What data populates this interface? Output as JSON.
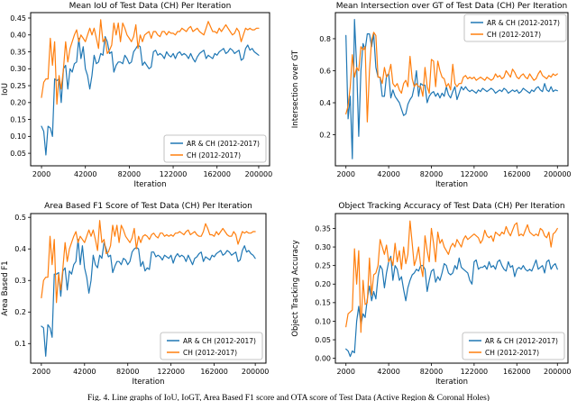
{
  "caption": {
    "text": "Fig. 4. Line graphs of IoU, IoGT, Area Based F1 score and OTA score of Test Data (Active Region & Coronal Holes)"
  },
  "colors": {
    "series_blue": "#1f77b4",
    "series_orange": "#ff7f0e",
    "axes_edge": "#000000",
    "legend_border": "#b3b3b3",
    "text": "#000000"
  },
  "x_axis": {
    "label": "Iteration",
    "start": 2000,
    "step": 2000,
    "count": 100,
    "xlim": [
      -7900,
      209900
    ],
    "ticks": [
      "2000",
      "42000",
      "82000",
      "122000",
      "162000",
      "200000"
    ]
  },
  "chart_data": [
    {
      "type": "line",
      "title": "Mean IoU of Test Data (CH) Per Iteration",
      "xlabel": "Iteration",
      "ylabel": "IoU",
      "ylim": [
        0.013,
        0.466
      ],
      "yticks": [
        "0.05",
        "0.10",
        "0.15",
        "0.20",
        "0.25",
        "0.30",
        "0.35",
        "0.40",
        "0.45"
      ],
      "legend_position": "lower right",
      "series": [
        {
          "name": "AR & CH (2012-2017)",
          "color": "#1f77b4",
          "values": [
            0.13,
            0.115,
            0.045,
            0.13,
            0.125,
            0.1,
            0.27,
            0.265,
            0.27,
            0.2,
            0.3,
            0.31,
            0.24,
            0.3,
            0.29,
            0.315,
            0.32,
            0.39,
            0.33,
            0.365,
            0.3,
            0.28,
            0.24,
            0.28,
            0.34,
            0.315,
            0.32,
            0.345,
            0.34,
            0.395,
            0.38,
            0.345,
            0.35,
            0.29,
            0.31,
            0.32,
            0.32,
            0.315,
            0.34,
            0.33,
            0.315,
            0.32,
            0.35,
            0.36,
            0.37,
            0.365,
            0.31,
            0.32,
            0.31,
            0.3,
            0.305,
            0.35,
            0.355,
            0.34,
            0.345,
            0.34,
            0.33,
            0.35,
            0.34,
            0.335,
            0.345,
            0.33,
            0.345,
            0.35,
            0.34,
            0.345,
            0.34,
            0.33,
            0.345,
            0.33,
            0.32,
            0.335,
            0.345,
            0.35,
            0.355,
            0.33,
            0.34,
            0.335,
            0.33,
            0.345,
            0.34,
            0.35,
            0.355,
            0.36,
            0.345,
            0.35,
            0.36,
            0.355,
            0.345,
            0.35,
            0.355,
            0.325,
            0.33,
            0.36,
            0.37,
            0.355,
            0.36,
            0.35,
            0.345,
            0.34
          ]
        },
        {
          "name": "CH (2012-2017)",
          "color": "#ff7f0e",
          "values": [
            0.215,
            0.26,
            0.27,
            0.27,
            0.39,
            0.31,
            0.38,
            0.195,
            0.28,
            0.24,
            0.3,
            0.38,
            0.32,
            0.36,
            0.38,
            0.4,
            0.415,
            0.38,
            0.4,
            0.39,
            0.38,
            0.4,
            0.42,
            0.4,
            0.42,
            0.39,
            0.36,
            0.445,
            0.38,
            0.39,
            0.345,
            0.355,
            0.37,
            0.435,
            0.4,
            0.435,
            0.38,
            0.435,
            0.42,
            0.4,
            0.39,
            0.38,
            0.395,
            0.43,
            0.36,
            0.4,
            0.38,
            0.4,
            0.405,
            0.41,
            0.39,
            0.41,
            0.41,
            0.4,
            0.395,
            0.41,
            0.41,
            0.4,
            0.41,
            0.405,
            0.405,
            0.4,
            0.41,
            0.41,
            0.42,
            0.415,
            0.41,
            0.42,
            0.425,
            0.41,
            0.415,
            0.42,
            0.41,
            0.405,
            0.4,
            0.42,
            0.44,
            0.425,
            0.41,
            0.41,
            0.405,
            0.42,
            0.41,
            0.42,
            0.43,
            0.42,
            0.41,
            0.4,
            0.405,
            0.42,
            0.41,
            0.38,
            0.4,
            0.42,
            0.415,
            0.42,
            0.415,
            0.415,
            0.42,
            0.42
          ]
        }
      ]
    },
    {
      "type": "line",
      "title": "Mean Intersection over GT of Test Data (CH) Per Iteration",
      "xlabel": "Iteration",
      "ylabel": "Intersection over GT",
      "ylim": [
        0.006,
        0.963
      ],
      "yticks": [
        "0.2",
        "0.4",
        "0.6",
        "0.8"
      ],
      "legend_position": "upper right",
      "series": [
        {
          "name": "AR & CH (2012-2017)",
          "color": "#1f77b4",
          "values": [
            0.82,
            0.3,
            0.44,
            0.05,
            0.92,
            0.63,
            0.19,
            0.6,
            0.77,
            0.73,
            0.83,
            0.83,
            0.75,
            0.83,
            0.62,
            0.56,
            0.56,
            0.44,
            0.44,
            0.57,
            0.58,
            0.43,
            0.48,
            0.44,
            0.42,
            0.4,
            0.36,
            0.32,
            0.33,
            0.39,
            0.42,
            0.44,
            0.5,
            0.6,
            0.44,
            0.52,
            0.51,
            0.51,
            0.4,
            0.44,
            0.46,
            0.47,
            0.44,
            0.46,
            0.43,
            0.46,
            0.44,
            0.5,
            0.45,
            0.43,
            0.47,
            0.5,
            0.42,
            0.46,
            0.5,
            0.48,
            0.5,
            0.48,
            0.47,
            0.48,
            0.47,
            0.46,
            0.48,
            0.47,
            0.49,
            0.48,
            0.47,
            0.48,
            0.49,
            0.48,
            0.46,
            0.47,
            0.48,
            0.47,
            0.49,
            0.48,
            0.46,
            0.47,
            0.48,
            0.47,
            0.48,
            0.46,
            0.47,
            0.49,
            0.48,
            0.47,
            0.46,
            0.48,
            0.47,
            0.49,
            0.5,
            0.48,
            0.47,
            0.52,
            0.48,
            0.47,
            0.5,
            0.47,
            0.48,
            0.475
          ]
        },
        {
          "name": "CH (2012-2017)",
          "color": "#ff7f0e",
          "values": [
            0.33,
            0.38,
            0.5,
            0.7,
            0.56,
            0.62,
            0.6,
            0.75,
            0.73,
            0.75,
            0.28,
            0.6,
            0.79,
            0.84,
            0.82,
            0.56,
            0.56,
            0.52,
            0.62,
            0.56,
            0.58,
            0.64,
            0.52,
            0.5,
            0.52,
            0.48,
            0.46,
            0.52,
            0.54,
            0.5,
            0.69,
            0.55,
            0.5,
            0.52,
            0.5,
            0.5,
            0.44,
            0.62,
            0.5,
            0.46,
            0.67,
            0.66,
            0.5,
            0.66,
            0.6,
            0.56,
            0.55,
            0.5,
            0.52,
            0.48,
            0.64,
            0.52,
            0.5,
            0.52,
            0.52,
            0.56,
            0.57,
            0.55,
            0.56,
            0.55,
            0.56,
            0.54,
            0.55,
            0.56,
            0.55,
            0.54,
            0.56,
            0.55,
            0.54,
            0.55,
            0.58,
            0.56,
            0.57,
            0.55,
            0.56,
            0.6,
            0.58,
            0.56,
            0.61,
            0.59,
            0.56,
            0.55,
            0.57,
            0.58,
            0.56,
            0.55,
            0.58,
            0.56,
            0.54,
            0.55,
            0.58,
            0.6,
            0.57,
            0.56,
            0.55,
            0.57,
            0.56,
            0.58,
            0.57,
            0.58
          ]
        }
      ]
    },
    {
      "type": "line",
      "title": "Area Based F1 Score of Test Data (CH) Per Iteration",
      "xlabel": "Iteration",
      "ylabel": "Area Based F1",
      "ylim": [
        0.038,
        0.512
      ],
      "yticks": [
        "0.1",
        "0.2",
        "0.3",
        "0.4",
        "0.5"
      ],
      "legend_position": "lower right",
      "series": [
        {
          "name": "AR & CH (2012-2017)",
          "color": "#1f77b4",
          "values": [
            0.155,
            0.15,
            0.06,
            0.16,
            0.15,
            0.12,
            0.32,
            0.32,
            0.325,
            0.25,
            0.33,
            0.34,
            0.27,
            0.33,
            0.32,
            0.35,
            0.36,
            0.43,
            0.35,
            0.41,
            0.34,
            0.31,
            0.26,
            0.3,
            0.38,
            0.35,
            0.34,
            0.38,
            0.37,
            0.42,
            0.4,
            0.375,
            0.38,
            0.325,
            0.345,
            0.36,
            0.36,
            0.35,
            0.37,
            0.365,
            0.35,
            0.36,
            0.39,
            0.4,
            0.405,
            0.4,
            0.345,
            0.36,
            0.33,
            0.34,
            0.335,
            0.39,
            0.39,
            0.375,
            0.38,
            0.375,
            0.365,
            0.38,
            0.375,
            0.37,
            0.38,
            0.355,
            0.375,
            0.385,
            0.375,
            0.38,
            0.375,
            0.36,
            0.38,
            0.365,
            0.35,
            0.37,
            0.375,
            0.385,
            0.39,
            0.36,
            0.375,
            0.37,
            0.365,
            0.38,
            0.375,
            0.385,
            0.39,
            0.395,
            0.38,
            0.385,
            0.395,
            0.39,
            0.38,
            0.385,
            0.39,
            0.36,
            0.365,
            0.395,
            0.41,
            0.39,
            0.395,
            0.385,
            0.38,
            0.37
          ]
        },
        {
          "name": "CH (2012-2017)",
          "color": "#ff7f0e",
          "values": [
            0.245,
            0.3,
            0.31,
            0.31,
            0.44,
            0.35,
            0.43,
            0.23,
            0.32,
            0.27,
            0.34,
            0.42,
            0.36,
            0.4,
            0.42,
            0.44,
            0.455,
            0.42,
            0.44,
            0.43,
            0.42,
            0.44,
            0.46,
            0.44,
            0.46,
            0.43,
            0.395,
            0.49,
            0.42,
            0.43,
            0.385,
            0.39,
            0.41,
            0.475,
            0.44,
            0.475,
            0.42,
            0.475,
            0.46,
            0.44,
            0.43,
            0.42,
            0.435,
            0.465,
            0.4,
            0.44,
            0.42,
            0.44,
            0.445,
            0.44,
            0.43,
            0.445,
            0.45,
            0.44,
            0.435,
            0.45,
            0.45,
            0.44,
            0.445,
            0.44,
            0.445,
            0.44,
            0.45,
            0.45,
            0.455,
            0.45,
            0.445,
            0.455,
            0.46,
            0.445,
            0.45,
            0.455,
            0.445,
            0.44,
            0.44,
            0.455,
            0.48,
            0.465,
            0.445,
            0.445,
            0.44,
            0.455,
            0.445,
            0.455,
            0.465,
            0.455,
            0.445,
            0.44,
            0.44,
            0.455,
            0.445,
            0.415,
            0.435,
            0.455,
            0.45,
            0.455,
            0.45,
            0.45,
            0.455,
            0.455
          ]
        }
      ]
    },
    {
      "type": "line",
      "title": "Object Tracking Accuracy of Test Data (CH) Per Iteration",
      "xlabel": "Iteration",
      "ylabel": "Object Tracking Accuracy",
      "ylim": [
        -0.013,
        0.39
      ],
      "yticks": [
        "0.00",
        "0.05",
        "0.10",
        "0.15",
        "0.20",
        "0.25",
        "0.30",
        "0.35"
      ],
      "legend_position": "lower right",
      "series": [
        {
          "name": "AR & CH (2012-2017)",
          "color": "#1f77b4",
          "values": [
            0.025,
            0.02,
            0.005,
            0.02,
            0.015,
            0.1,
            0.14,
            0.09,
            0.12,
            0.11,
            0.16,
            0.195,
            0.155,
            0.18,
            0.16,
            0.22,
            0.25,
            0.24,
            0.19,
            0.23,
            0.26,
            0.275,
            0.21,
            0.25,
            0.24,
            0.21,
            0.22,
            0.185,
            0.155,
            0.19,
            0.21,
            0.225,
            0.23,
            0.24,
            0.235,
            0.25,
            0.25,
            0.24,
            0.18,
            0.21,
            0.235,
            0.24,
            0.205,
            0.22,
            0.21,
            0.23,
            0.255,
            0.25,
            0.23,
            0.225,
            0.23,
            0.25,
            0.24,
            0.27,
            0.245,
            0.24,
            0.235,
            0.23,
            0.21,
            0.2,
            0.26,
            0.265,
            0.24,
            0.245,
            0.245,
            0.25,
            0.24,
            0.26,
            0.245,
            0.25,
            0.24,
            0.26,
            0.265,
            0.25,
            0.24,
            0.235,
            0.26,
            0.245,
            0.25,
            0.22,
            0.24,
            0.245,
            0.24,
            0.25,
            0.24,
            0.235,
            0.24,
            0.235,
            0.25,
            0.265,
            0.24,
            0.245,
            0.25,
            0.23,
            0.26,
            0.265,
            0.24,
            0.25,
            0.255,
            0.24
          ]
        },
        {
          "name": "CH (2012-2017)",
          "color": "#ff7f0e",
          "values": [
            0.085,
            0.12,
            0.125,
            0.13,
            0.295,
            0.2,
            0.29,
            0.07,
            0.21,
            0.145,
            0.15,
            0.27,
            0.17,
            0.225,
            0.23,
            0.25,
            0.32,
            0.3,
            0.28,
            0.305,
            0.26,
            0.27,
            0.25,
            0.31,
            0.26,
            0.29,
            0.24,
            0.3,
            0.255,
            0.28,
            0.37,
            0.31,
            0.25,
            0.27,
            0.3,
            0.25,
            0.22,
            0.33,
            0.29,
            0.26,
            0.35,
            0.31,
            0.26,
            0.34,
            0.31,
            0.32,
            0.3,
            0.29,
            0.28,
            0.3,
            0.31,
            0.3,
            0.32,
            0.31,
            0.3,
            0.32,
            0.33,
            0.32,
            0.325,
            0.33,
            0.335,
            0.33,
            0.325,
            0.31,
            0.32,
            0.345,
            0.33,
            0.325,
            0.33,
            0.315,
            0.34,
            0.335,
            0.33,
            0.34,
            0.335,
            0.355,
            0.34,
            0.33,
            0.345,
            0.36,
            0.365,
            0.33,
            0.335,
            0.33,
            0.345,
            0.36,
            0.34,
            0.335,
            0.33,
            0.335,
            0.33,
            0.35,
            0.345,
            0.33,
            0.325,
            0.34,
            0.3,
            0.335,
            0.34,
            0.35
          ]
        }
      ]
    }
  ]
}
